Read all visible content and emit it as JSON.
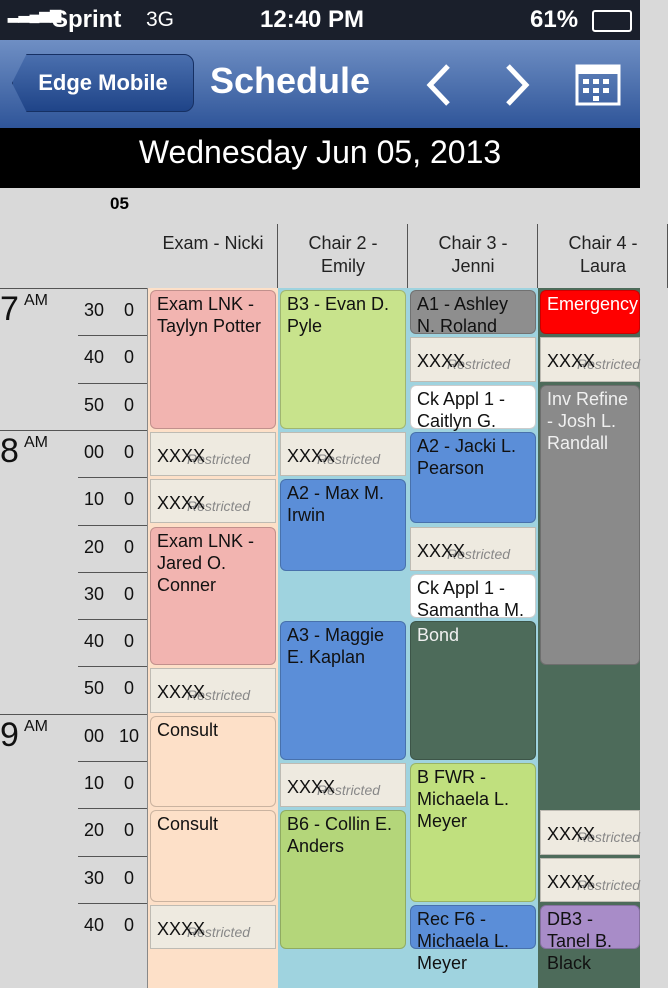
{
  "status": {
    "carrier": "Sprint",
    "network": "3G",
    "time": "12:40 PM",
    "battery": "61%"
  },
  "nav": {
    "back": "Edge Mobile",
    "title": "Schedule"
  },
  "date": "Wednesday Jun 05, 2013",
  "day_number": "05",
  "columns": [
    "Exam - Nicki",
    "Chair 2 - Emily",
    "Chair 3 - Jenni",
    "Chair 4 - Laura"
  ],
  "rows": [
    {
      "hour": "7",
      "ampm": "AM",
      "minute": "30",
      "count": "0"
    },
    {
      "minute": "40",
      "count": "0"
    },
    {
      "minute": "50",
      "count": "0"
    },
    {
      "hour": "8",
      "ampm": "AM",
      "minute": "00",
      "count": "0"
    },
    {
      "minute": "10",
      "count": "0"
    },
    {
      "minute": "20",
      "count": "0"
    },
    {
      "minute": "30",
      "count": "0"
    },
    {
      "minute": "40",
      "count": "0"
    },
    {
      "minute": "50",
      "count": "0"
    },
    {
      "hour": "9",
      "ampm": "AM",
      "minute": "00",
      "count": "10"
    },
    {
      "minute": "10",
      "count": "0"
    },
    {
      "minute": "20",
      "count": "0"
    },
    {
      "minute": "30",
      "count": "0"
    },
    {
      "minute": "40",
      "count": "0"
    }
  ],
  "appointments": [
    {
      "col": 0,
      "row": 0,
      "span": 3,
      "color": "#f2b4b0",
      "label": "Exam LNK - Taylyn Potter"
    },
    {
      "col": 0,
      "row": 3,
      "span": 1,
      "color": "#eeeae0",
      "label": "XXXX",
      "note": "Restricted"
    },
    {
      "col": 0,
      "row": 4,
      "span": 1,
      "color": "#eeeae0",
      "label": "XXXX",
      "note": "Restricted"
    },
    {
      "col": 0,
      "row": 5,
      "span": 3,
      "color": "#f2b4b0",
      "label": "Exam LNK - Jared O. Conner"
    },
    {
      "col": 0,
      "row": 8,
      "span": 1,
      "color": "#eeeae0",
      "label": "XXXX",
      "note": "Restricted"
    },
    {
      "col": 0,
      "row": 9,
      "span": 2,
      "color": "#fde0c8",
      "label": "Consult"
    },
    {
      "col": 0,
      "row": 11,
      "span": 2,
      "color": "#fde0c8",
      "label": "Consult"
    },
    {
      "col": 0,
      "row": 13,
      "span": 1,
      "color": "#eeeae0",
      "label": "XXXX",
      "note": "Restricted"
    },
    {
      "col": 1,
      "row": 0,
      "span": 3,
      "color": "#c8e38c",
      "label": "B3 - Evan D. Pyle"
    },
    {
      "col": 1,
      "row": 3,
      "span": 1,
      "color": "#eeeae0",
      "label": "XXXX",
      "note": "Restricted"
    },
    {
      "col": 1,
      "row": 4,
      "span": 2,
      "color": "#5b8ed8",
      "label": "A2 - Max M. Irwin"
    },
    {
      "col": 1,
      "row": 7,
      "span": 3,
      "color": "#5b8ed8",
      "label": "A3 - Maggie E. Kaplan"
    },
    {
      "col": 1,
      "row": 10,
      "span": 1,
      "color": "#eeeae0",
      "label": "XXXX",
      "note": "Restricted"
    },
    {
      "col": 1,
      "row": 11,
      "span": 3,
      "color": "#b4d67a",
      "label": "B6 - Collin E. Anders"
    },
    {
      "col": 2,
      "row": 0,
      "span": 1,
      "color": "#8e8e8e",
      "label": "A1 - Ashley N. Roland"
    },
    {
      "col": 2,
      "row": 1,
      "span": 1,
      "color": "#eeeae0",
      "label": "XXXX",
      "note": "Restricted"
    },
    {
      "col": 2,
      "row": 2,
      "span": 1,
      "color": "#ffffff",
      "label": "Ck Appl 1 - Caitlyn G."
    },
    {
      "col": 2,
      "row": 3,
      "span": 2,
      "color": "#5b8ed8",
      "label": "A2 - Jacki L. Pearson"
    },
    {
      "col": 2,
      "row": 5,
      "span": 1,
      "color": "#eeeae0",
      "label": "XXXX",
      "note": "Restricted"
    },
    {
      "col": 2,
      "row": 6,
      "span": 1,
      "color": "#ffffff",
      "label": "Ck Appl 1 - Samantha M."
    },
    {
      "col": 2,
      "row": 7,
      "span": 3,
      "color": "#4d6b5a",
      "label": "Bond"
    },
    {
      "col": 2,
      "row": 10,
      "span": 3,
      "color": "#c0e07e",
      "label": "B FWR - Michaela L. Meyer"
    },
    {
      "col": 2,
      "row": 13,
      "span": 1,
      "color": "#5b8ed8",
      "label": "Rec F6 - Michaela L. Meyer"
    },
    {
      "col": 3,
      "row": 0,
      "span": 1,
      "color": "#ff0000",
      "label": "Emergency"
    },
    {
      "col": 3,
      "row": 1,
      "span": 1,
      "color": "#eeeae0",
      "label": "XXXX",
      "note": "Restricted"
    },
    {
      "col": 3,
      "row": 2,
      "span": 6,
      "color": "#8a8a8a",
      "label": "Inv Refine - Josh L. Randall"
    },
    {
      "col": 3,
      "row": 11,
      "span": 1,
      "color": "#eeeae0",
      "label": "XXXX",
      "note": "Restricted"
    },
    {
      "col": 3,
      "row": 12,
      "span": 1,
      "color": "#eeeae0",
      "label": "XXXX",
      "note": "Restricted"
    },
    {
      "col": 3,
      "row": 13,
      "span": 1,
      "color": "#a88cc8",
      "label": "DB3 - Tanel B. Black"
    }
  ]
}
